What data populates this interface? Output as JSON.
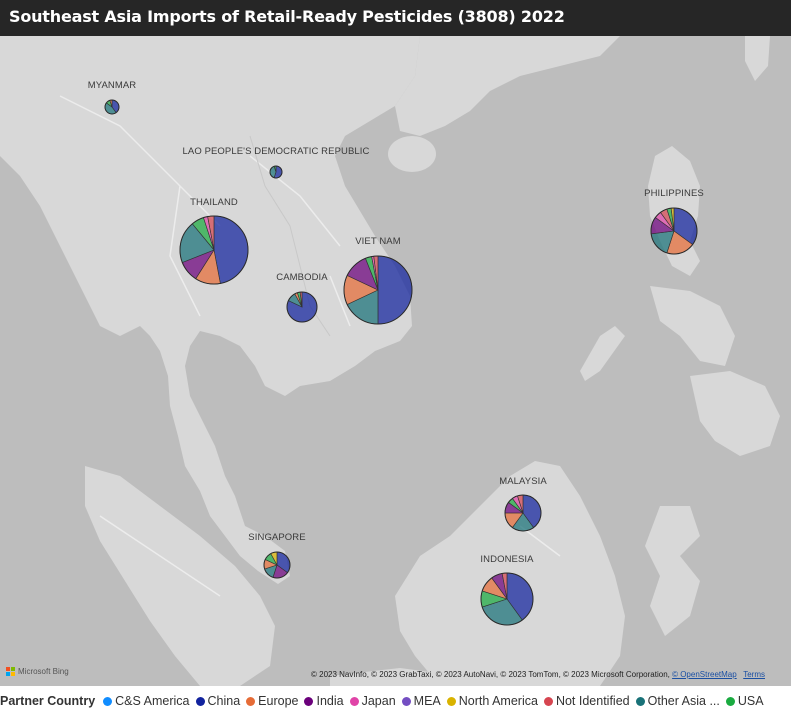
{
  "title": "Southeast Asia Imports of Retail-Ready Pesticides (3808) 2022",
  "bing_label": "Microsoft Bing",
  "attribution": {
    "text": "© 2023 NavInfo, © 2023 GrabTaxi, © 2023 AutoNavi, © 2023 TomTom, © 2023 Microsoft Corporation,",
    "osm_link": "© OpenStreetMap",
    "terms_link": "Terms"
  },
  "legend": {
    "title": "Partner Country",
    "items": [
      {
        "label": "C&S America",
        "color": "#118DFF"
      },
      {
        "label": "China",
        "color": "#12239E"
      },
      {
        "label": "Europe",
        "color": "#E66C37"
      },
      {
        "label": "India",
        "color": "#6B007B"
      },
      {
        "label": "Japan",
        "color": "#E044A7"
      },
      {
        "label": "MEA",
        "color": "#744EC2"
      },
      {
        "label": "North America",
        "color": "#D9B300"
      },
      {
        "label": "Not Identified",
        "color": "#D64550"
      },
      {
        "label": "Other Asia ...",
        "color": "#197278"
      },
      {
        "label": "USA",
        "color": "#1AAB40"
      }
    ]
  },
  "countries": [
    {
      "name": "MYANMAR",
      "shares": {
        "China": 0.4,
        "Other Asia ...": 0.45,
        "USA": 0.1,
        "Europe": 0.05
      }
    },
    {
      "name": "LAO PEOPLE'S DEMOCRATIC REPUBLIC",
      "shares": {
        "China": 0.55,
        "Other Asia ...": 0.4,
        "USA": 0.05
      }
    },
    {
      "name": "THAILAND",
      "shares": {
        "China": 0.47,
        "Europe": 0.12,
        "India": 0.1,
        "Other Asia ...": 0.2,
        "USA": 0.06,
        "Japan": 0.02,
        "Not Identified": 0.03
      }
    },
    {
      "name": "CAMBODIA",
      "shares": {
        "China": 0.82,
        "Other Asia ...": 0.1,
        "Europe": 0.03,
        "USA": 0.03,
        "Not Identified": 0.02
      }
    },
    {
      "name": "VIET NAM",
      "shares": {
        "China": 0.5,
        "Other Asia ...": 0.18,
        "Europe": 0.14,
        "India": 0.12,
        "USA": 0.03,
        "Japan": 0.01,
        "Not Identified": 0.02
      }
    },
    {
      "name": "PHILIPPINES",
      "shares": {
        "China": 0.35,
        "Europe": 0.2,
        "Other Asia ...": 0.18,
        "India": 0.12,
        "Japan": 0.05,
        "Not Identified": 0.05,
        "USA": 0.03,
        "North America": 0.02
      }
    },
    {
      "name": "MALAYSIA",
      "shares": {
        "China": 0.4,
        "Other Asia ...": 0.2,
        "Europe": 0.15,
        "India": 0.1,
        "USA": 0.05,
        "Japan": 0.05,
        "Not Identified": 0.05
      }
    },
    {
      "name": "SINGAPORE",
      "shares": {
        "China": 0.35,
        "India": 0.2,
        "Other Asia ...": 0.15,
        "Europe": 0.12,
        "USA": 0.1,
        "North America": 0.08
      }
    },
    {
      "name": "INDONESIA",
      "shares": {
        "China": 0.4,
        "Other Asia ...": 0.3,
        "USA": 0.1,
        "Europe": 0.1,
        "India": 0.07,
        "Not Identified": 0.03
      }
    }
  ]
}
